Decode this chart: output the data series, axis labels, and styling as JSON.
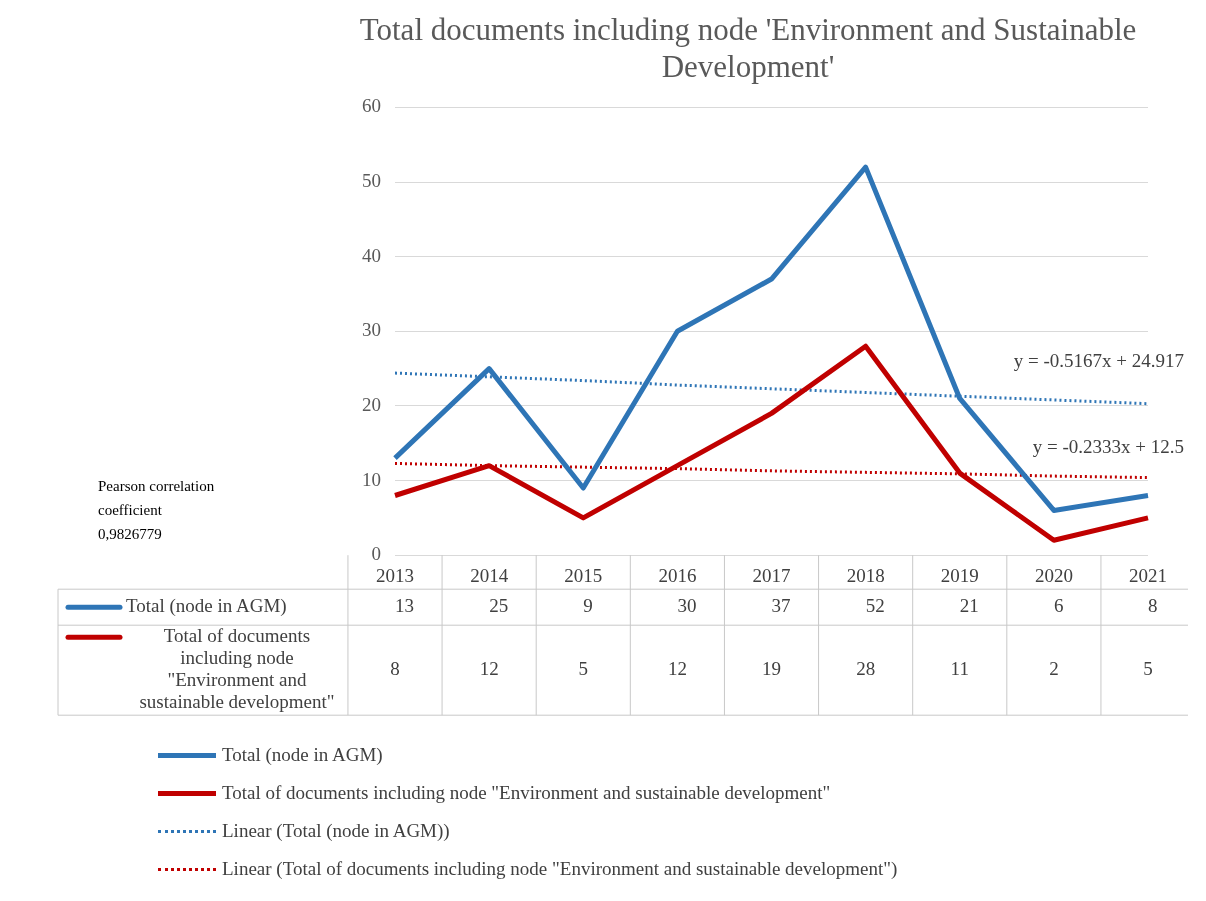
{
  "chart_data": {
    "type": "line",
    "title": "Total documents including node 'Environment and Sustainable Development'",
    "categories": [
      "2013",
      "2014",
      "2015",
      "2016",
      "2017",
      "2018",
      "2019",
      "2020",
      "2021"
    ],
    "series": [
      {
        "name": "Total (node in AGM)",
        "color": "#2e75b6",
        "values": [
          13,
          25,
          9,
          30,
          37,
          52,
          21,
          6,
          8
        ],
        "value_labels": [
          "13",
          "25",
          "9",
          "30",
          "37",
          "52",
          "21",
          "6",
          "8"
        ]
      },
      {
        "name": "Total of documents including node \"Environment and sustainable development\"",
        "color": "#c00000",
        "values": [
          8,
          12,
          5,
          12,
          19,
          28,
          11,
          2,
          5
        ],
        "value_labels": [
          "8",
          "12",
          "5",
          "12",
          "19",
          "28",
          "11",
          "2",
          "5"
        ]
      },
      {
        "name": "Linear (Total (node in AGM))",
        "color": "#2e75b6",
        "line_style": "dotted",
        "values": [
          24.4,
          23.9,
          23.4,
          22.8,
          22.3,
          21.8,
          21.3,
          20.8,
          20.3
        ]
      },
      {
        "name": "Linear (Total of documents including node \"Environment and sustainable development\")",
        "color": "#c00000",
        "line_style": "dotted",
        "values": [
          12.3,
          12.0,
          11.8,
          11.6,
          11.3,
          11.1,
          10.9,
          10.6,
          10.4
        ]
      }
    ],
    "ylim": [
      0,
      60
    ],
    "yticks": [
      0,
      10,
      20,
      30,
      40,
      50,
      60
    ],
    "grid": "y",
    "marker": "none",
    "legend": "bottom",
    "annotations": [
      "y = -0.5167x + 24.917",
      "y = -0.2333x + 12.5",
      "Pearson correlation coefficient 0,9826779"
    ]
  }
}
